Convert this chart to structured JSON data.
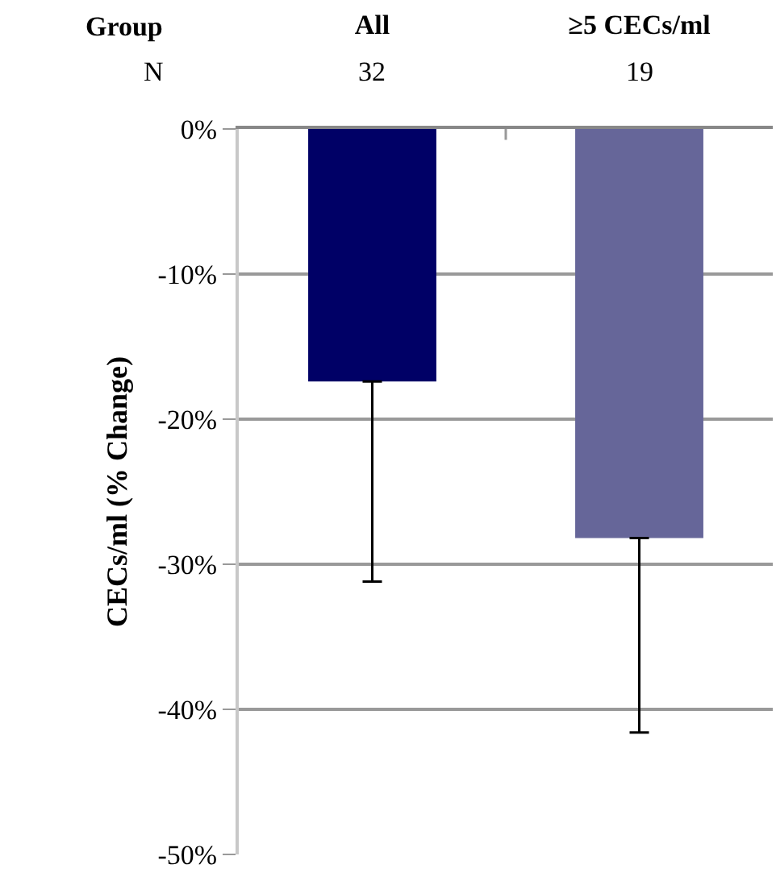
{
  "chart_data": {
    "type": "bar",
    "categories": [
      "All",
      "≥5 CECs/ml"
    ],
    "values": [
      -17.4,
      -28.2
    ],
    "colors": [
      "#000066",
      "#666699"
    ],
    "errors": [
      [
        -31.2,
        -17.4
      ],
      [
        -41.6,
        -28.2
      ]
    ],
    "ylabel": "CECs/ml (% Change)",
    "ylim": [
      -50,
      0
    ],
    "yticks": [
      {
        "value": 0,
        "label": "0%"
      },
      {
        "value": -10,
        "label": "-10%"
      },
      {
        "value": -20,
        "label": "-20%"
      },
      {
        "value": -30,
        "label": "-30%"
      },
      {
        "value": -40,
        "label": "-40%"
      },
      {
        "value": -50,
        "label": "-50%"
      }
    ],
    "grid": "y",
    "annotations": [
      "Group",
      "N",
      "32",
      "19"
    ]
  }
}
